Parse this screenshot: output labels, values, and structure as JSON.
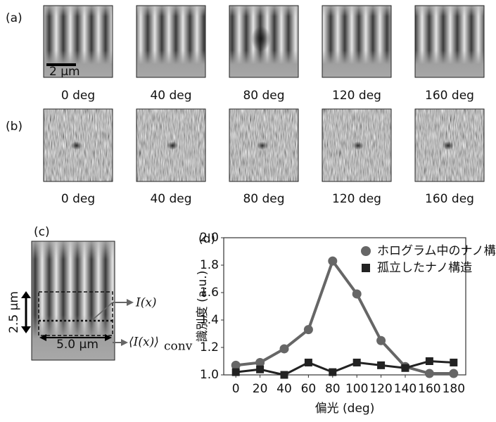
{
  "panel_a": {
    "label": "(a)",
    "scale_bar": "2 μm",
    "captions": [
      "0 deg",
      "40 deg",
      "80 deg",
      "120 deg",
      "160 deg"
    ]
  },
  "panel_b": {
    "label": "(b)",
    "captions": [
      "0 deg",
      "40 deg",
      "80 deg",
      "120 deg",
      "160 deg"
    ]
  },
  "panel_c": {
    "label": "(c)",
    "height_label": "2.5 μm",
    "width_label": "5.0 μm",
    "line_label": "I(x)",
    "conv_label": "⟨I(x)⟩",
    "conv_subscript": "conv"
  },
  "chart_data": {
    "type": "line",
    "panel_label": "(d)",
    "x_label": "偏光 (deg)",
    "y_label": "識別度 (a.u.)",
    "x": [
      0,
      20,
      40,
      60,
      80,
      100,
      120,
      140,
      160,
      180
    ],
    "series": [
      {
        "name": "ホログラム中のナノ構造",
        "color": "#666666",
        "marker": "circle",
        "values": [
          1.07,
          1.09,
          1.19,
          1.33,
          1.83,
          1.59,
          1.25,
          1.06,
          1.01,
          1.01
        ]
      },
      {
        "name": "孤立したナノ構造",
        "color": "#222222",
        "marker": "square",
        "values": [
          1.02,
          1.04,
          1.0,
          1.09,
          1.02,
          1.09,
          1.07,
          1.05,
          1.1,
          1.09
        ]
      }
    ],
    "xlim": [
      -10,
      190
    ],
    "xticks": [
      0,
      20,
      40,
      60,
      80,
      100,
      120,
      140,
      160,
      180
    ],
    "ylim": [
      1.0,
      2.0
    ],
    "yticks": [
      {
        "value": 1.0,
        "label": "1.0"
      },
      {
        "value": 1.2,
        "label": "1.2"
      },
      {
        "value": 1.4,
        "label": "1.4"
      },
      {
        "value": 1.6,
        "label": "1.6"
      },
      {
        "value": 1.8,
        "label": "1.8"
      },
      {
        "value": 2.0,
        "label": "2.0"
      }
    ],
    "legend": "upper right"
  }
}
